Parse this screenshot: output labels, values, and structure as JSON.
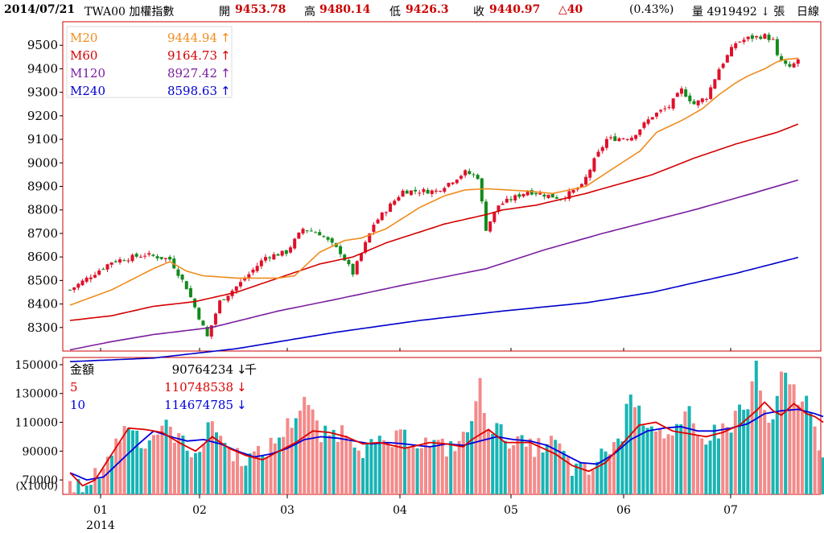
{
  "header": {
    "date": "2014/07/21",
    "symbol": "TWA00 加權指數",
    "open_label": "開",
    "open": "9453.78",
    "high_label": "高",
    "high": "9480.14",
    "low_label": "低",
    "low": "9426.3",
    "close_label": "收",
    "close": "9440.97",
    "change": "△40",
    "change_pct": "(0.43%)",
    "volume": "量 4919492 ↓ 張",
    "period": "日線"
  },
  "colors": {
    "ma20": "#f08c1e",
    "ma60": "#d40000",
    "ma120": "#7a1e9e",
    "ma240": "#0000cc",
    "up": "#e0102a",
    "down": "#138a1e",
    "vol_up": "#f48a8a",
    "vol_down": "#18b4b4",
    "vol_ma5": "#dd0000",
    "vol_ma10": "#0000dd",
    "frame": "#cc0000"
  },
  "chart_data": [
    {
      "type": "candlestick",
      "ylim": [
        8200,
        9600
      ],
      "yticks": [
        8300,
        8400,
        8500,
        8600,
        8700,
        8800,
        8900,
        9000,
        9100,
        9200,
        9300,
        9400,
        9500
      ],
      "legend": [
        {
          "name": "M20",
          "value": "9444.94",
          "arrow": "↑"
        },
        {
          "name": "M60",
          "value": "9164.73",
          "arrow": "↑"
        },
        {
          "name": "M120",
          "value": "8927.42",
          "arrow": "↑"
        },
        {
          "name": "M240",
          "value": "8598.63",
          "arrow": "↑"
        }
      ],
      "price_anchors": [
        [
          0,
          8460
        ],
        [
          10,
          8580
        ],
        [
          18,
          8610
        ],
        [
          24,
          8590
        ],
        [
          28,
          8470
        ],
        [
          33,
          8260
        ],
        [
          36,
          8410
        ],
        [
          41,
          8490
        ],
        [
          47,
          8600
        ],
        [
          52,
          8620
        ],
        [
          56,
          8720
        ],
        [
          60,
          8700
        ],
        [
          65,
          8620
        ],
        [
          68,
          8530
        ],
        [
          73,
          8740
        ],
        [
          80,
          8880
        ],
        [
          88,
          8880
        ],
        [
          95,
          8960
        ],
        [
          98,
          8940
        ],
        [
          100,
          8720
        ],
        [
          103,
          8820
        ],
        [
          110,
          8880
        ],
        [
          118,
          8850
        ],
        [
          123,
          8900
        ],
        [
          126,
          9010
        ],
        [
          129,
          9100
        ],
        [
          135,
          9110
        ],
        [
          140,
          9200
        ],
        [
          144,
          9240
        ],
        [
          147,
          9310
        ],
        [
          150,
          9250
        ],
        [
          153,
          9280
        ],
        [
          156,
          9400
        ],
        [
          160,
          9510
        ],
        [
          163,
          9530
        ],
        [
          167,
          9540
        ],
        [
          169,
          9520
        ],
        [
          170,
          9450
        ],
        [
          173,
          9400
        ],
        [
          175,
          9440
        ]
      ],
      "ma20": [
        [
          0,
          8395
        ],
        [
          10,
          8460
        ],
        [
          20,
          8550
        ],
        [
          24,
          8580
        ],
        [
          28,
          8540
        ],
        [
          32,
          8520
        ],
        [
          40,
          8510
        ],
        [
          50,
          8510
        ],
        [
          54,
          8520
        ],
        [
          60,
          8620
        ],
        [
          66,
          8670
        ],
        [
          70,
          8680
        ],
        [
          76,
          8720
        ],
        [
          84,
          8810
        ],
        [
          90,
          8860
        ],
        [
          95,
          8885
        ],
        [
          100,
          8890
        ],
        [
          110,
          8880
        ],
        [
          116,
          8870
        ],
        [
          124,
          8900
        ],
        [
          130,
          8970
        ],
        [
          137,
          9050
        ],
        [
          141,
          9130
        ],
        [
          147,
          9180
        ],
        [
          152,
          9230
        ],
        [
          156,
          9290
        ],
        [
          160,
          9340
        ],
        [
          163,
          9370
        ],
        [
          167,
          9400
        ],
        [
          170,
          9430
        ],
        [
          172,
          9440
        ],
        [
          175,
          9445
        ]
      ],
      "ma60": [
        [
          0,
          8330
        ],
        [
          10,
          8350
        ],
        [
          20,
          8390
        ],
        [
          30,
          8410
        ],
        [
          40,
          8450
        ],
        [
          50,
          8510
        ],
        [
          60,
          8570
        ],
        [
          68,
          8600
        ],
        [
          76,
          8660
        ],
        [
          90,
          8740
        ],
        [
          100,
          8780
        ],
        [
          104,
          8800
        ],
        [
          112,
          8820
        ],
        [
          124,
          8870
        ],
        [
          140,
          8950
        ],
        [
          150,
          9020
        ],
        [
          160,
          9080
        ],
        [
          170,
          9130
        ],
        [
          175,
          9165
        ]
      ],
      "ma120": [
        [
          0,
          8205
        ],
        [
          10,
          8240
        ],
        [
          20,
          8270
        ],
        [
          34,
          8300
        ],
        [
          50,
          8370
        ],
        [
          64,
          8420
        ],
        [
          80,
          8480
        ],
        [
          100,
          8550
        ],
        [
          114,
          8630
        ],
        [
          128,
          8700
        ],
        [
          150,
          8800
        ],
        [
          164,
          8870
        ],
        [
          175,
          8927
        ]
      ],
      "ma240": [
        [
          0,
          8155
        ],
        [
          20,
          8170
        ],
        [
          40,
          8210
        ],
        [
          64,
          8280
        ],
        [
          84,
          8330
        ],
        [
          104,
          8370
        ],
        [
          124,
          8405
        ],
        [
          140,
          8450
        ],
        [
          160,
          8530
        ],
        [
          175,
          8598
        ]
      ],
      "xlabels": [
        "01",
        "02",
        "03",
        "04",
        "05",
        "06",
        "07"
      ],
      "year_label": "2014"
    },
    {
      "type": "bar",
      "ylim": [
        60000,
        155000
      ],
      "yticks": [
        70000,
        90000,
        110000,
        130000,
        150000
      ],
      "unit_label": "(X1000)",
      "legend": [
        {
          "name": "金額",
          "value": "90764234",
          "arrow": "↓",
          "unit": "千"
        },
        {
          "name": "5",
          "value": "110748538",
          "arrow": "↓"
        },
        {
          "name": "10",
          "value": "114674785",
          "arrow": "↓"
        }
      ],
      "vol_anchors": [
        [
          0,
          66000
        ],
        [
          4,
          62000
        ],
        [
          6,
          72000
        ],
        [
          10,
          90000
        ],
        [
          14,
          110000
        ],
        [
          18,
          95000
        ],
        [
          22,
          108000
        ],
        [
          26,
          100000
        ],
        [
          28,
          90000
        ],
        [
          32,
          95000
        ],
        [
          34,
          112000
        ],
        [
          38,
          90000
        ],
        [
          42,
          85000
        ],
        [
          46,
          88000
        ],
        [
          50,
          100000
        ],
        [
          54,
          115000
        ],
        [
          56,
          128000
        ],
        [
          60,
          100000
        ],
        [
          66,
          105000
        ],
        [
          70,
          92000
        ],
        [
          76,
          95000
        ],
        [
          80,
          100000
        ],
        [
          86,
          95000
        ],
        [
          90,
          92000
        ],
        [
          94,
          98000
        ],
        [
          96,
          112000
        ],
        [
          98,
          135000
        ],
        [
          100,
          110000
        ],
        [
          104,
          100000
        ],
        [
          110,
          92000
        ],
        [
          116,
          96000
        ],
        [
          120,
          78000
        ],
        [
          124,
          75000
        ],
        [
          128,
          90000
        ],
        [
          132,
          100000
        ],
        [
          134,
          136000
        ],
        [
          136,
          115000
        ],
        [
          140,
          108000
        ],
        [
          144,
          98000
        ],
        [
          148,
          115000
        ],
        [
          150,
          98000
        ],
        [
          154,
          103000
        ],
        [
          158,
          108000
        ],
        [
          160,
          120000
        ],
        [
          162,
          118000
        ],
        [
          164,
          153000
        ],
        [
          166,
          112000
        ],
        [
          168,
          108000
        ],
        [
          170,
          141000
        ],
        [
          172,
          137000
        ],
        [
          174,
          128000
        ],
        [
          176,
          125000
        ],
        [
          178,
          103000
        ],
        [
          180,
          91000
        ]
      ],
      "ma5": [
        [
          0,
          75000
        ],
        [
          3,
          66000
        ],
        [
          6,
          70000
        ],
        [
          10,
          88000
        ],
        [
          14,
          106000
        ],
        [
          18,
          105000
        ],
        [
          22,
          103000
        ],
        [
          26,
          96000
        ],
        [
          30,
          90000
        ],
        [
          34,
          100000
        ],
        [
          38,
          92000
        ],
        [
          42,
          87000
        ],
        [
          46,
          84000
        ],
        [
          50,
          90000
        ],
        [
          54,
          96000
        ],
        [
          58,
          104000
        ],
        [
          62,
          103000
        ],
        [
          66,
          100000
        ],
        [
          70,
          95000
        ],
        [
          74,
          96000
        ],
        [
          80,
          92000
        ],
        [
          86,
          96000
        ],
        [
          90,
          95000
        ],
        [
          94,
          93000
        ],
        [
          96,
          98000
        ],
        [
          100,
          105000
        ],
        [
          104,
          96000
        ],
        [
          110,
          96000
        ],
        [
          116,
          88000
        ],
        [
          120,
          80000
        ],
        [
          124,
          76000
        ],
        [
          128,
          82000
        ],
        [
          132,
          95000
        ],
        [
          136,
          108000
        ],
        [
          140,
          110000
        ],
        [
          144,
          104000
        ],
        [
          148,
          102000
        ],
        [
          152,
          100000
        ],
        [
          156,
          103000
        ],
        [
          160,
          108000
        ],
        [
          164,
          118000
        ],
        [
          166,
          124000
        ],
        [
          168,
          118000
        ],
        [
          170,
          115000
        ],
        [
          173,
          123000
        ],
        [
          176,
          116000
        ],
        [
          178,
          114000
        ],
        [
          180,
          110000
        ]
      ],
      "ma10": [
        [
          0,
          75000
        ],
        [
          4,
          70000
        ],
        [
          8,
          72000
        ],
        [
          12,
          83000
        ],
        [
          16,
          94000
        ],
        [
          20,
          104000
        ],
        [
          24,
          100000
        ],
        [
          28,
          97000
        ],
        [
          32,
          98000
        ],
        [
          36,
          95000
        ],
        [
          40,
          90000
        ],
        [
          44,
          86000
        ],
        [
          48,
          88000
        ],
        [
          52,
          92000
        ],
        [
          56,
          98000
        ],
        [
          60,
          100000
        ],
        [
          64,
          99000
        ],
        [
          68,
          97000
        ],
        [
          72,
          95000
        ],
        [
          76,
          96000
        ],
        [
          80,
          95000
        ],
        [
          86,
          93000
        ],
        [
          90,
          95000
        ],
        [
          94,
          94000
        ],
        [
          98,
          97000
        ],
        [
          102,
          100000
        ],
        [
          106,
          98000
        ],
        [
          110,
          97000
        ],
        [
          114,
          94000
        ],
        [
          118,
          88000
        ],
        [
          122,
          82000
        ],
        [
          126,
          81000
        ],
        [
          130,
          88000
        ],
        [
          134,
          98000
        ],
        [
          138,
          104000
        ],
        [
          142,
          106000
        ],
        [
          146,
          107000
        ],
        [
          150,
          104000
        ],
        [
          154,
          104000
        ],
        [
          158,
          106000
        ],
        [
          162,
          109000
        ],
        [
          166,
          116000
        ],
        [
          170,
          118000
        ],
        [
          174,
          119000
        ],
        [
          178,
          116000
        ],
        [
          180,
          114000
        ]
      ]
    }
  ]
}
